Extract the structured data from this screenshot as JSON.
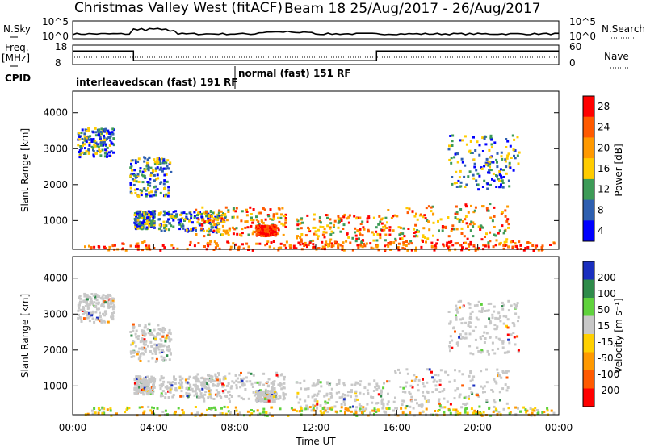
{
  "chart_data": {
    "type": "heatmap",
    "title": "Christmas Valley West (fitACF)",
    "subtitle": "Beam 18 25/Aug/2017 - 26/Aug/2017",
    "xlabel": "Time UT",
    "x_ticks": [
      "00:00",
      "04:00",
      "08:00",
      "12:00",
      "16:00",
      "20:00",
      "00:00"
    ],
    "xlim_hours": [
      0,
      24
    ],
    "top_panels": {
      "nsky_label": "N.Sky",
      "nsky_ticks": [
        "10^5",
        "10^0"
      ],
      "nsearch_label": "N.Search",
      "nsearch_ticks": [
        "10^5",
        "10^0"
      ],
      "freq_label": "Freq.",
      "freq_unit": "[MHz]",
      "freq_ticks": [
        "18",
        "8"
      ],
      "nave_label": "Nave",
      "nave_ticks": [
        "60",
        "0"
      ],
      "freq_steps": [
        {
          "start": 0,
          "end": 3,
          "value": 15
        },
        {
          "start": 3,
          "end": 15,
          "value": 10
        },
        {
          "start": 15,
          "end": 24,
          "value": 15
        }
      ],
      "cpid_label": "CPID",
      "cpid_modes": [
        {
          "label": "interleavedscan (fast) 191 RF",
          "start": 0,
          "end": 8
        },
        {
          "label": "normal (fast) 151 RF",
          "start": 8,
          "end": 24
        }
      ]
    },
    "panels": [
      {
        "name": "power",
        "ylabel": "Slant Range [km]",
        "y_ticks": [
          "1000",
          "2000",
          "3000",
          "4000"
        ],
        "ylim": [
          200,
          4600
        ],
        "colorbar_label": "Power [dB]",
        "colorbar_ticks": [
          "28",
          "24",
          "20",
          "16",
          "12",
          "8",
          "4"
        ],
        "colors": [
          "#ff0000",
          "#ff5a00",
          "#ff9900",
          "#ffcc00",
          "#3d9b57",
          "#2e5fb0",
          "#0000ff"
        ]
      },
      {
        "name": "velocity",
        "ylabel": "Slant Range [km]",
        "y_ticks": [
          "1000",
          "2000",
          "3000",
          "4000"
        ],
        "ylim": [
          200,
          4600
        ],
        "colorbar_label": "Velocity [m s⁻¹]",
        "colorbar_ticks": [
          "200",
          "100",
          "50",
          "15",
          "-15",
          "-50",
          "-100",
          "-200"
        ],
        "colors": [
          "#1a2fbf",
          "#2e8b4a",
          "#5fd23c",
          "#c8c8c8",
          "#ffd000",
          "#ff9900",
          "#ff5a00",
          "#ff0000"
        ]
      }
    ],
    "echo_regions": [
      {
        "t0": 0.2,
        "t1": 2.0,
        "r0": 2800,
        "r1": 3600,
        "level": "mid"
      },
      {
        "t0": 2.8,
        "t1": 4.8,
        "r0": 1700,
        "r1": 2800,
        "level": "mid"
      },
      {
        "t0": 3.0,
        "t1": 4.0,
        "r0": 800,
        "r1": 1300,
        "level": "mid"
      },
      {
        "t0": 4.2,
        "t1": 7.5,
        "r0": 700,
        "r1": 1300,
        "level": "mid"
      },
      {
        "t0": 6.0,
        "t1": 10.5,
        "r0": 600,
        "r1": 1400,
        "level": "high"
      },
      {
        "t0": 9.0,
        "t1": 10.0,
        "r0": 600,
        "r1": 900,
        "level": "peak"
      },
      {
        "t0": 11.0,
        "t1": 15.5,
        "r0": 300,
        "r1": 1200,
        "level": "high"
      },
      {
        "t0": 15.5,
        "t1": 21.5,
        "r0": 400,
        "r1": 1500,
        "level": "high"
      },
      {
        "t0": 18.5,
        "t1": 22.0,
        "r0": 1900,
        "r1": 3400,
        "level": "mid"
      },
      {
        "t0": 0.5,
        "t1": 24.0,
        "r0": 200,
        "r1": 450,
        "level": "ground"
      }
    ]
  }
}
